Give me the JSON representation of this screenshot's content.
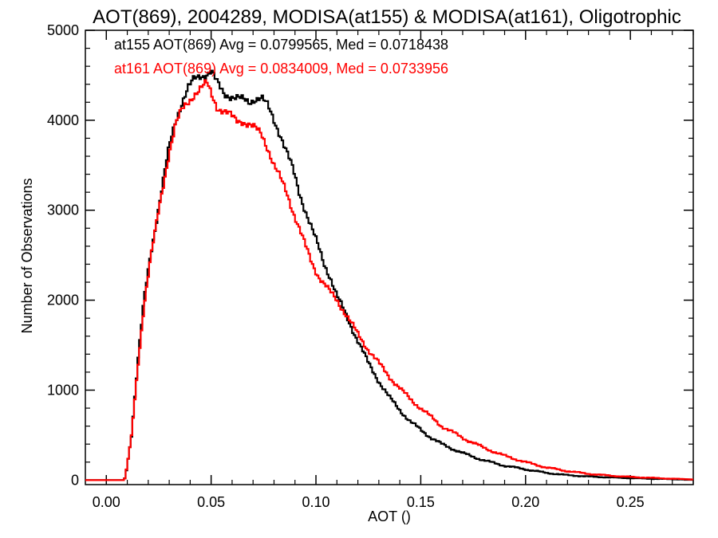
{
  "chart_data": {
    "type": "line",
    "title": "AOT(869), 2004289, MODISA(at155) & MODISA(at161), Oligotrophic",
    "xlabel": "AOT ()",
    "ylabel": "Number of Observations",
    "xlim": [
      -0.01,
      0.28
    ],
    "ylim": [
      -50,
      5000
    ],
    "x_ticks": [
      0.0,
      0.05,
      0.1,
      0.15,
      0.2,
      0.25
    ],
    "x_tick_labels": [
      "0.00",
      "0.05",
      "0.10",
      "0.15",
      "0.20",
      "0.25"
    ],
    "y_ticks": [
      0,
      1000,
      2000,
      3000,
      4000,
      5000
    ],
    "y_tick_labels": [
      "0",
      "1000",
      "2000",
      "3000",
      "4000",
      "5000"
    ],
    "grid": false,
    "legend_placement": "top-left",
    "series": [
      {
        "name": "at155 AOT(869) Avg = 0.0799565, Med = 0.0718438",
        "color": "#000000",
        "x": [
          -0.01,
          0.005,
          0.009,
          0.012,
          0.015,
          0.018,
          0.021,
          0.024,
          0.027,
          0.03,
          0.033,
          0.036,
          0.039,
          0.042,
          0.045,
          0.048,
          0.05,
          0.053,
          0.056,
          0.059,
          0.062,
          0.065,
          0.068,
          0.071,
          0.074,
          0.077,
          0.08,
          0.083,
          0.086,
          0.089,
          0.092,
          0.095,
          0.098,
          0.101,
          0.104,
          0.107,
          0.11,
          0.115,
          0.12,
          0.125,
          0.13,
          0.135,
          0.14,
          0.145,
          0.15,
          0.155,
          0.16,
          0.17,
          0.18,
          0.19,
          0.2,
          0.21,
          0.22,
          0.23,
          0.24,
          0.25,
          0.26,
          0.27,
          0.28
        ],
        "y": [
          0,
          0,
          20,
          500,
          1300,
          2000,
          2500,
          2900,
          3300,
          3700,
          4000,
          4200,
          4350,
          4450,
          4500,
          4520,
          4550,
          4400,
          4300,
          4280,
          4250,
          4220,
          4200,
          4250,
          4250,
          4150,
          4000,
          3850,
          3650,
          3450,
          3200,
          3000,
          2800,
          2600,
          2400,
          2250,
          2050,
          1800,
          1550,
          1300,
          1100,
          920,
          780,
          650,
          560,
          470,
          400,
          300,
          220,
          160,
          120,
          80,
          55,
          40,
          30,
          22,
          15,
          10,
          5
        ]
      },
      {
        "name": "at161 AOT(869) Avg = 0.0834009, Med = 0.0733956",
        "color": "#ff0000",
        "x": [
          -0.01,
          0.005,
          0.009,
          0.012,
          0.015,
          0.018,
          0.021,
          0.024,
          0.027,
          0.03,
          0.033,
          0.036,
          0.039,
          0.042,
          0.045,
          0.048,
          0.05,
          0.053,
          0.056,
          0.059,
          0.062,
          0.065,
          0.068,
          0.071,
          0.074,
          0.077,
          0.08,
          0.083,
          0.086,
          0.089,
          0.092,
          0.095,
          0.098,
          0.101,
          0.104,
          0.107,
          0.11,
          0.115,
          0.12,
          0.125,
          0.13,
          0.135,
          0.14,
          0.145,
          0.15,
          0.155,
          0.16,
          0.17,
          0.18,
          0.19,
          0.2,
          0.21,
          0.22,
          0.23,
          0.24,
          0.25,
          0.26,
          0.27,
          0.28
        ],
        "y": [
          0,
          0,
          20,
          480,
          1250,
          1950,
          2450,
          2850,
          3250,
          3650,
          3950,
          4100,
          4200,
          4300,
          4350,
          4400,
          4300,
          4150,
          4100,
          4050,
          4000,
          4000,
          3950,
          3900,
          3850,
          3700,
          3500,
          3350,
          3200,
          3000,
          2800,
          2600,
          2420,
          2280,
          2180,
          2080,
          2000,
          1820,
          1620,
          1450,
          1300,
          1150,
          1020,
          900,
          800,
          700,
          600,
          470,
          360,
          270,
          200,
          140,
          100,
          70,
          50,
          35,
          25,
          15,
          8
        ]
      }
    ]
  }
}
